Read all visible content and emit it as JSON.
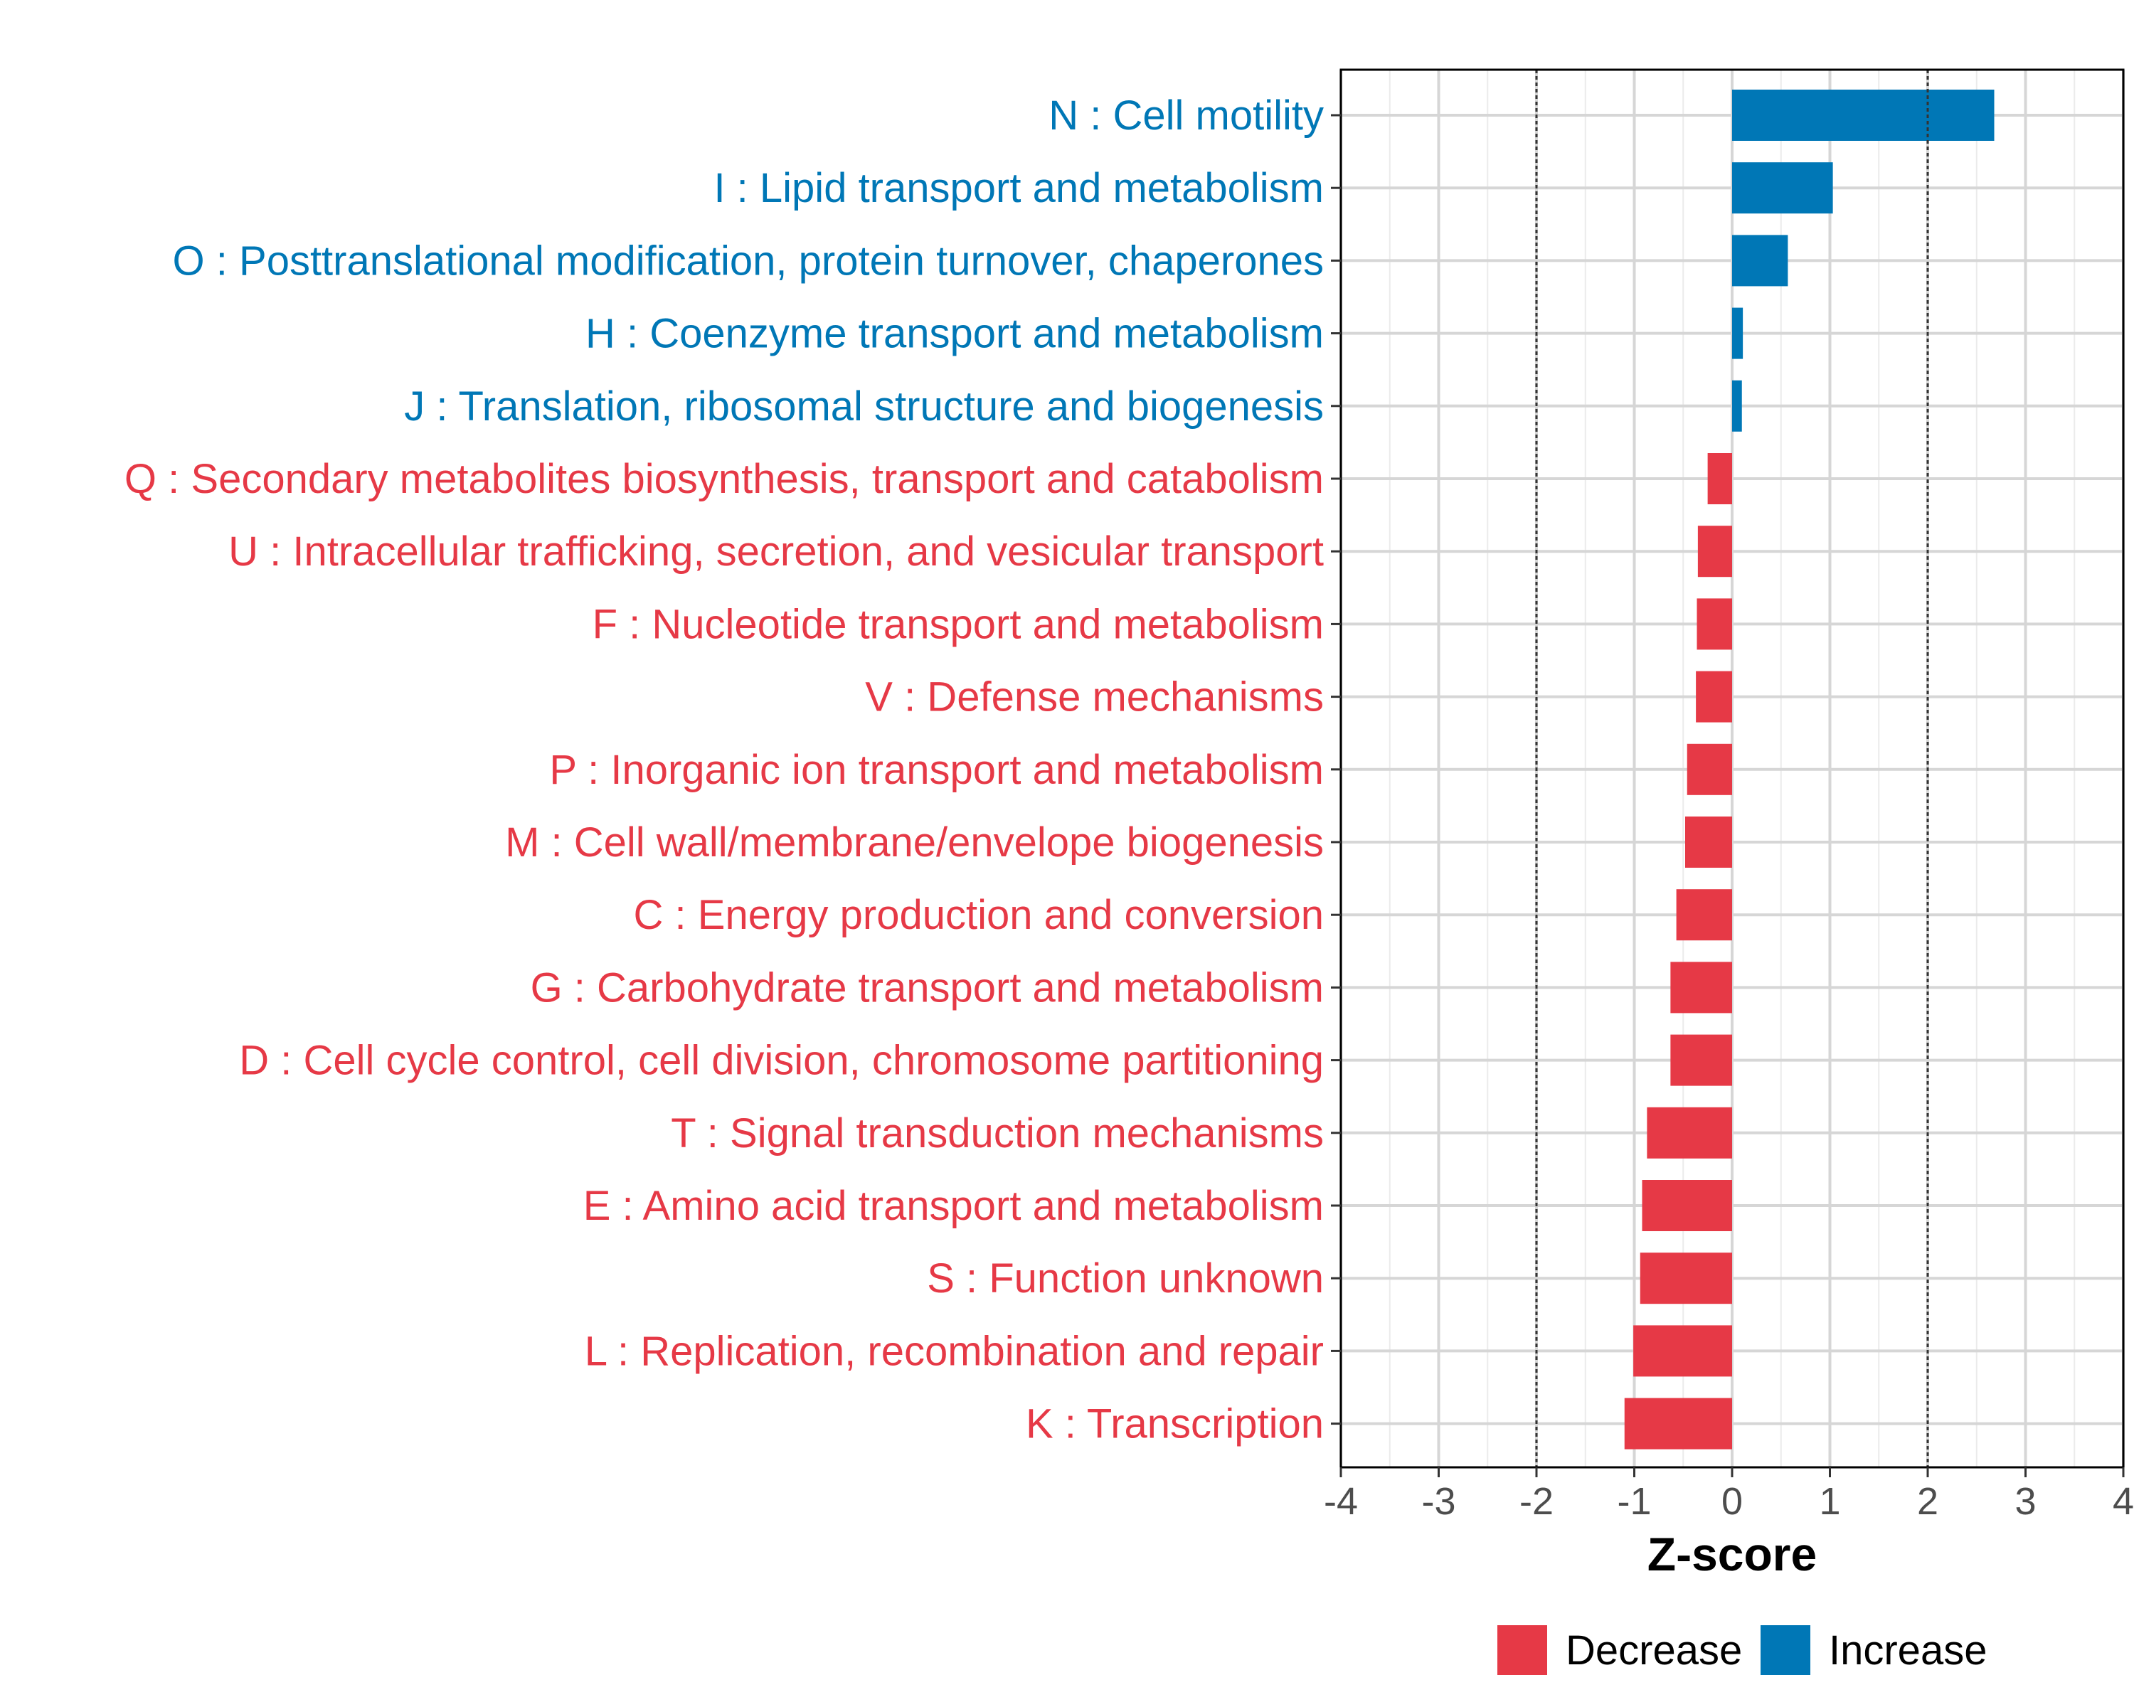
{
  "chart_data": {
    "type": "bar",
    "orientation": "horizontal",
    "title": "",
    "xlabel": "Z-score",
    "ylabel": "",
    "xlim": [
      -4,
      4
    ],
    "xticks": [
      "-4",
      "-3",
      "-2",
      "-1",
      "0",
      "1",
      "2",
      "3",
      "4"
    ],
    "reference_lines": [
      -2,
      2
    ],
    "grid": true,
    "legend_position": "bottom",
    "categories": [
      "N : Cell motility",
      "I : Lipid transport and metabolism",
      "O : Posttranslational modification, protein turnover, chaperones",
      "H : Coenzyme transport and metabolism",
      "J : Translation, ribosomal structure and biogenesis",
      "Q : Secondary metabolites biosynthesis, transport and catabolism",
      "U : Intracellular trafficking, secretion, and vesicular transport",
      "F : Nucleotide transport and metabolism",
      "V : Defense mechanisms",
      "P : Inorganic ion transport and metabolism",
      "M : Cell wall/membrane/envelope biogenesis",
      "C : Energy production and conversion",
      "G : Carbohydrate transport and metabolism",
      "D : Cell cycle control, cell division, chromosome partitioning",
      "T : Signal transduction mechanisms",
      "E : Amino acid transport and metabolism",
      "S : Function unknown",
      "L : Replication, recombination and repair",
      "K : Transcription"
    ],
    "values": [
      2.68,
      1.03,
      0.57,
      0.11,
      0.1,
      -0.25,
      -0.35,
      -0.36,
      -0.37,
      -0.46,
      -0.48,
      -0.57,
      -0.63,
      -0.63,
      -0.87,
      -0.92,
      -0.94,
      -1.01,
      -1.1
    ],
    "groups": [
      "Increase",
      "Increase",
      "Increase",
      "Increase",
      "Increase",
      "Decrease",
      "Decrease",
      "Decrease",
      "Decrease",
      "Decrease",
      "Decrease",
      "Decrease",
      "Decrease",
      "Decrease",
      "Decrease",
      "Decrease",
      "Decrease",
      "Decrease",
      "Decrease"
    ],
    "legend": [
      {
        "name": "Decrease",
        "color": "#e63946"
      },
      {
        "name": "Increase",
        "color": "#0077b6"
      }
    ]
  }
}
